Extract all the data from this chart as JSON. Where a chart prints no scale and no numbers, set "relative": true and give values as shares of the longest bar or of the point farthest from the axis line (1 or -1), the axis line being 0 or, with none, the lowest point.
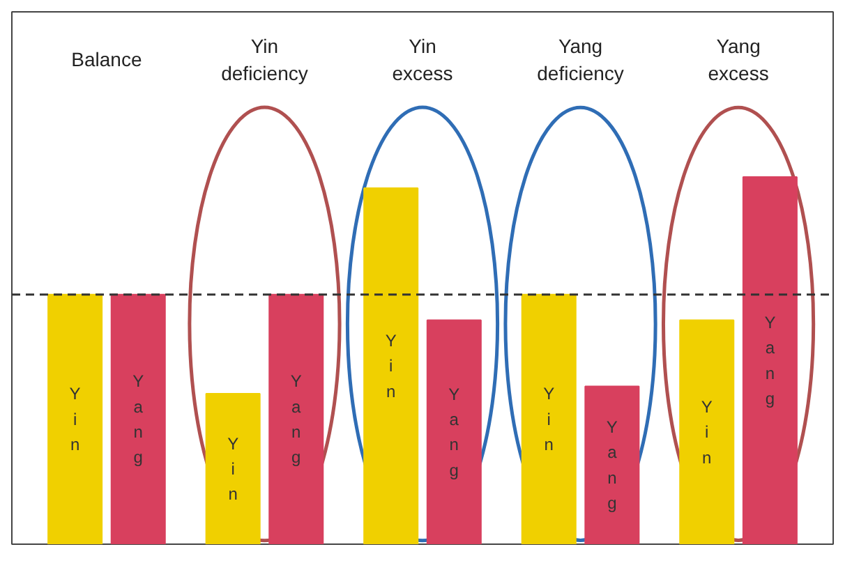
{
  "chart_data": {
    "type": "bar",
    "relative": true,
    "categories": [
      "Balance",
      "Yin deficiency",
      "Yin excess",
      "Yang deficiency",
      "Yang excess"
    ],
    "series": [
      {
        "name": "Yin",
        "color": "#f0d000",
        "values": [
          0.68,
          0.41,
          0.97,
          0.68,
          0.61
        ]
      },
      {
        "name": "Yang",
        "color": "#d8405e",
        "values": [
          0.68,
          0.68,
          0.61,
          0.43,
          1.0
        ]
      }
    ],
    "ref_lines": [
      {
        "axis": "y",
        "value": 0.68,
        "color": "#333333",
        "line_style": "dashed"
      }
    ],
    "grid": false
  }
}
